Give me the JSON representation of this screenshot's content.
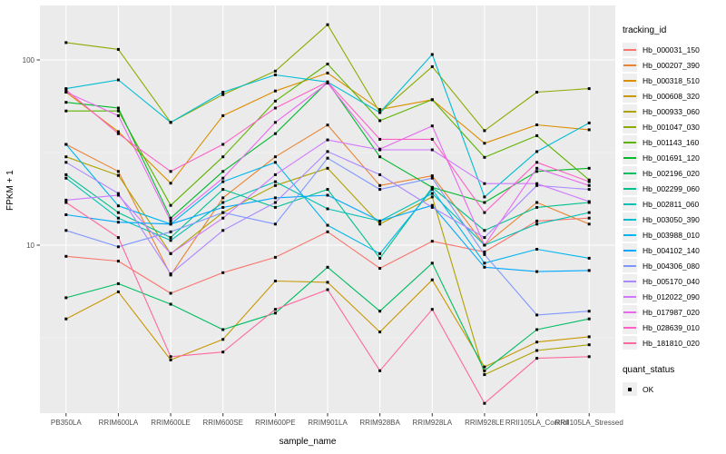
{
  "chart_data": {
    "type": "line",
    "title": "",
    "xlabel": "sample_name",
    "ylabel": "FPKM + 1",
    "y_scale": "log10",
    "y_ticks": [
      10,
      100
    ],
    "y_minor_ticks": [
      3.162,
      31.62
    ],
    "ylim": [
      1.25,
      197
    ],
    "grid": "white-on-gray",
    "legend_position": "right",
    "panel_bg": "#ebebeb",
    "grid_color": "#ffffff",
    "point_color": "#000000",
    "categories": [
      "PB350LA",
      "RRIM600LA",
      "RRIM600LE",
      "RRIM600SE",
      "RRIM600PE",
      "RRIM901LA",
      "RRIM928BA",
      "RRIM928LA",
      "RRIM928LE",
      "RRII105LA_Control",
      "RRII105LA_Stressed"
    ],
    "series": [
      {
        "name": "Hb_000031_150",
        "color": "#F8766D",
        "values": [
          8.7,
          8.2,
          5.5,
          7.1,
          8.6,
          11.8,
          7.5,
          10.5,
          9.2,
          13.5,
          14
        ]
      },
      {
        "name": "Hb_000207_390",
        "color": "#EA8331",
        "values": [
          35,
          25,
          6.9,
          18,
          30,
          44.5,
          21,
          23.7,
          10,
          17,
          13
        ]
      },
      {
        "name": "Hb_000318_510",
        "color": "#DB8E00",
        "values": [
          67,
          41,
          21.6,
          50,
          68,
          85,
          54,
          61,
          35.5,
          44.6,
          42
        ]
      },
      {
        "name": "Hb_000608_320",
        "color": "#C79800",
        "values": [
          4.0,
          5.6,
          2.4,
          3.1,
          6.4,
          6.3,
          3.4,
          6.5,
          2.2,
          3.0,
          3.2
        ]
      },
      {
        "name": "Hb_000933_060",
        "color": "#AEA200",
        "values": [
          30,
          23.8,
          9.0,
          15,
          21,
          26,
          13,
          18.2,
          2.0,
          2.7,
          2.9
        ]
      },
      {
        "name": "Hb_001047_030",
        "color": "#8CAB00",
        "values": [
          124,
          114,
          46,
          65,
          87,
          155,
          52,
          92,
          41.5,
          67,
          70
        ]
      },
      {
        "name": "Hb_001143_160",
        "color": "#5EB300",
        "values": [
          53,
          53,
          16.4,
          30,
          60,
          95,
          47,
          61,
          29.8,
          39,
          22.5
        ]
      },
      {
        "name": "Hb_001691_120",
        "color": "#00B92D",
        "values": [
          59,
          55,
          14,
          25,
          40,
          76,
          30,
          20.5,
          17,
          25,
          26
        ]
      },
      {
        "name": "Hb_002196_020",
        "color": "#00BD61",
        "values": [
          5.2,
          6.2,
          4.8,
          3.5,
          4.3,
          7.6,
          4.4,
          8,
          2.1,
          3.5,
          4.0
        ]
      },
      {
        "name": "Hb_002299_060",
        "color": "#00C08D",
        "values": [
          24,
          15,
          11,
          20,
          16,
          20,
          8.5,
          20.5,
          12,
          16,
          17
        ]
      },
      {
        "name": "Hb_002811_060",
        "color": "#00C0B4",
        "values": [
          23,
          14,
          10.6,
          17,
          22,
          15.7,
          13.5,
          19,
          10,
          13,
          15
        ]
      },
      {
        "name": "Hb_003050_390",
        "color": "#00BDD4",
        "values": [
          70,
          78,
          46,
          67,
          83,
          76,
          52,
          107,
          18.2,
          32,
          45.7
        ]
      },
      {
        "name": "Hb_003988_010",
        "color": "#00B5EE",
        "values": [
          35,
          16.3,
          13,
          22,
          28,
          12.8,
          9,
          20,
          8,
          9.5,
          8.5
        ]
      },
      {
        "name": "Hb_004102_140",
        "color": "#00A7FF",
        "values": [
          14.6,
          13.3,
          13,
          16,
          18,
          18.6,
          13.5,
          16.4,
          7.6,
          7.2,
          7.3
        ]
      },
      {
        "name": "Hb_004306_080",
        "color": "#7F96FF",
        "values": [
          12,
          9.8,
          11.8,
          15,
          13,
          29.5,
          20,
          23,
          8.9,
          4.2,
          4.4
        ]
      },
      {
        "name": "Hb_005170_040",
        "color": "#AC88FF",
        "values": [
          28,
          19,
          7,
          12,
          17,
          32,
          24,
          16,
          11,
          21,
          20
        ]
      },
      {
        "name": "Hb_012022_090",
        "color": "#CF78FF",
        "values": [
          17.5,
          18.6,
          9,
          14,
          24,
          37,
          32.7,
          32.7,
          21.5,
          21.5,
          17.2
        ]
      },
      {
        "name": "Hb_017987_020",
        "color": "#E868F0",
        "values": [
          67,
          50,
          13.5,
          23,
          46,
          75,
          33,
          44,
          10,
          26,
          21
        ]
      },
      {
        "name": "Hb_028639_010",
        "color": "#FF61C7",
        "values": [
          69,
          40,
          25,
          35,
          55,
          76,
          37.3,
          37.3,
          15,
          28,
          22
        ]
      },
      {
        "name": "Hb_181810_020",
        "color": "#FF689F",
        "values": [
          17,
          11,
          2.5,
          2.65,
          4.5,
          5.75,
          2.1,
          4.5,
          1.4,
          2.45,
          2.5
        ]
      }
    ],
    "color_legend_title": "tracking_id",
    "shape_legend_title": "quant_status",
    "shape_legend_items": [
      {
        "label": "OK"
      }
    ]
  }
}
